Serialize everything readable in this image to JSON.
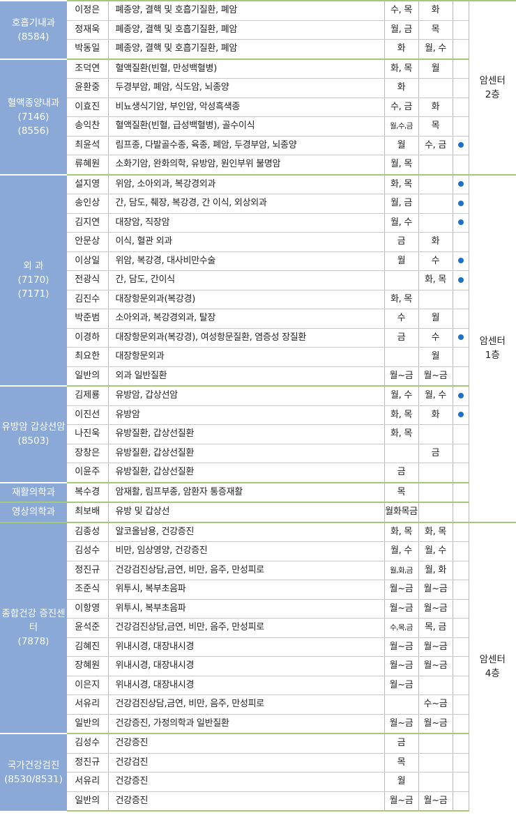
{
  "departments": [
    {
      "name": "호흡기내과",
      "codes": [
        "(8584)"
      ],
      "doctors": [
        {
          "name": "이정은",
          "specialty": "폐종양, 결핵 및 호흡기질환, 폐암",
          "am": "수, 목",
          "pm": "화",
          "dot": false
        },
        {
          "name": "정재욱",
          "specialty": "폐종양, 결핵 및 호흡기질환, 폐암",
          "am": "월, 금",
          "pm": "목",
          "dot": false
        },
        {
          "name": "박동일",
          "specialty": "폐종양, 결핵 및 호흡기질환, 폐암",
          "am": "화",
          "pm": "월, 수",
          "dot": false
        }
      ]
    },
    {
      "name": "혈액종양내과",
      "codes": [
        "(7146)",
        "(8556)"
      ],
      "doctors": [
        {
          "name": "조덕연",
          "specialty": "혈액질환(빈혈, 만성백혈병)",
          "am": "화, 목",
          "pm": "월",
          "dot": false
        },
        {
          "name": "윤환중",
          "specialty": "두경부암, 폐암, 식도암, 뇌종양",
          "am": "화",
          "pm": "",
          "dot": false
        },
        {
          "name": "이효진",
          "specialty": "비뇨생식기암, 부인암, 악성흑색종",
          "am": "수, 금",
          "pm": "화",
          "dot": false
        },
        {
          "name": "송익찬",
          "specialty": "혈액질환(빈혈, 급성백혈병), 골수이식",
          "am": "월,수,금",
          "pm": "목",
          "dot": false
        },
        {
          "name": "최윤석",
          "specialty": "림프종, 다발골수종, 육종, 폐암, 두경부암, 뇌종양",
          "am": "월",
          "pm": "수, 금",
          "dot": true
        },
        {
          "name": "류혜원",
          "specialty": "소화기암, 완화의학, 유방암, 원인부위 불명암",
          "am": "월, 목",
          "pm": "",
          "dot": false
        }
      ]
    },
    {
      "name": "외 과",
      "codes": [
        "(7170)",
        "(7171)"
      ],
      "doctors": [
        {
          "name": "설지영",
          "specialty": "위암, 소아외과, 복강경외과",
          "am": "화, 목",
          "pm": "",
          "dot": true
        },
        {
          "name": "송인상",
          "specialty": "간, 담도, 췌장, 복강경, 간 이식, 외상외과",
          "am": "월, 금",
          "pm": "",
          "dot": true
        },
        {
          "name": "김지연",
          "specialty": "대장암, 직장암",
          "am": "월, 수",
          "pm": "",
          "dot": true
        },
        {
          "name": "안문상",
          "specialty": "이식, 혈관 외과",
          "am": "금",
          "pm": "화",
          "dot": false
        },
        {
          "name": "이상일",
          "specialty": "위암, 복강경, 대사비만수술",
          "am": "월",
          "pm": "수",
          "dot": true
        },
        {
          "name": "전광식",
          "specialty": "간, 담도, 간이식",
          "am": "",
          "pm": "화, 목",
          "dot": true
        },
        {
          "name": "김진수",
          "specialty": "대장항문외과(복강경)",
          "am": "화, 목",
          "pm": "",
          "dot": false
        },
        {
          "name": "박준범",
          "specialty": "소아외과, 복강경외과, 탈장",
          "am": "수",
          "pm": "월",
          "dot": false
        },
        {
          "name": "이경하",
          "specialty": "대장항문외과(복강경), 여성항문질환, 염증성 장질환",
          "am": "금",
          "pm": "수",
          "dot": true
        },
        {
          "name": "최요한",
          "specialty": "대장항문외과",
          "am": "",
          "pm": "월",
          "dot": false
        },
        {
          "name": "일반의",
          "specialty": "외과 일반질환",
          "am": "월~금",
          "pm": "월~금",
          "dot": false
        }
      ]
    },
    {
      "name": "유방암 갑상선암",
      "codes": [
        "(8503)"
      ],
      "doctors": [
        {
          "name": "김제룡",
          "specialty": "유방암, 갑상선암",
          "am": "월, 수",
          "pm": "월, 수",
          "dot": true
        },
        {
          "name": "이진선",
          "specialty": "유방암",
          "am": "화, 목",
          "pm": "화",
          "dot": true
        },
        {
          "name": "나진욱",
          "specialty": "유방질환, 갑상선질환",
          "am": "화, 목",
          "pm": "",
          "dot": false
        },
        {
          "name": "장창은",
          "specialty": "유방질환, 갑상선질환",
          "am": "",
          "pm": "금",
          "dot": false
        },
        {
          "name": "이윤주",
          "specialty": "유방질환, 갑상선질환",
          "am": "금",
          "pm": "",
          "dot": false
        }
      ]
    },
    {
      "name": "재활의학과",
      "codes": [],
      "doctors": [
        {
          "name": "복수경",
          "specialty": "암재활, 림프부종, 암환자 통증재활",
          "am": "목",
          "pm": "",
          "dot": false
        }
      ]
    },
    {
      "name": "영상의학과",
      "codes": [],
      "doctors": [
        {
          "name": "최보배",
          "specialty": "유방 및 갑상선",
          "am": "월화목금",
          "pm": "",
          "dot": false
        }
      ]
    },
    {
      "name": "종합건강 증진센터",
      "codes": [
        "(7878)"
      ],
      "doctors": [
        {
          "name": "김종성",
          "specialty": "알코올남용, 건강증진",
          "am": "화, 목",
          "pm": "화, 목",
          "dot": false
        },
        {
          "name": "김성수",
          "specialty": "비만, 임상영양, 건강증진",
          "am": "월, 수",
          "pm": "월, 수",
          "dot": false
        },
        {
          "name": "정진규",
          "specialty": "건강검진상담,금연, 비만, 음주, 만성피로",
          "am": "월,화,금",
          "pm": "월, 화",
          "dot": false
        },
        {
          "name": "조준식",
          "specialty": "위투시, 복부초음파",
          "am": "월~금",
          "pm": "월~금",
          "dot": false
        },
        {
          "name": "이항영",
          "specialty": "위투시, 복부초음파",
          "am": "월~금",
          "pm": "월~금",
          "dot": false
        },
        {
          "name": "윤석준",
          "specialty": "건강검진상담,금연, 비만, 음주, 만성피로",
          "am": "수,목,금",
          "pm": "목, 금",
          "dot": false
        },
        {
          "name": "김혜진",
          "specialty": "위내시경, 대장내시경",
          "am": "월~금",
          "pm": "월~금",
          "dot": false
        },
        {
          "name": "장혜원",
          "specialty": "위내시경, 대장내시경",
          "am": "월~금",
          "pm": "월~금",
          "dot": false
        },
        {
          "name": "이은지",
          "specialty": "위내시경, 대장내시경",
          "am": "월~금",
          "pm": "",
          "dot": false
        },
        {
          "name": "서유리",
          "specialty": "건강검진상담,금연, 비만, 음주, 만성피로",
          "am": "",
          "pm": "수~금",
          "dot": false
        },
        {
          "name": "일반의",
          "specialty": "건강증진, 가정의학과 일반질환",
          "am": "월~금",
          "pm": "월~금",
          "dot": false
        }
      ]
    },
    {
      "name": "국가건강검진",
      "codes": [
        "(8530/8531)"
      ],
      "doctors": [
        {
          "name": "김성수",
          "specialty": "건강증진",
          "am": "금",
          "pm": "",
          "dot": false
        },
        {
          "name": "정진규",
          "specialty": "건강검진",
          "am": "목",
          "pm": "",
          "dot": false
        },
        {
          "name": "서유리",
          "specialty": "건강증진",
          "am": "월",
          "pm": "",
          "dot": false
        },
        {
          "name": "일반의",
          "specialty": "건강증진",
          "am": "월~금",
          "pm": "월~금",
          "dot": false
        }
      ]
    }
  ],
  "locations": [
    {
      "label": [
        "암센터",
        "2층"
      ],
      "rows": 9
    },
    {
      "label": [
        "암센터",
        "1층"
      ],
      "rows": 18
    },
    {
      "label": [
        "암센터",
        "4층"
      ],
      "rows": 15
    }
  ],
  "colors": {
    "dept_bg": "#8aa9d6",
    "divider": "#a4c97a",
    "bullet": "#1a73c8"
  }
}
